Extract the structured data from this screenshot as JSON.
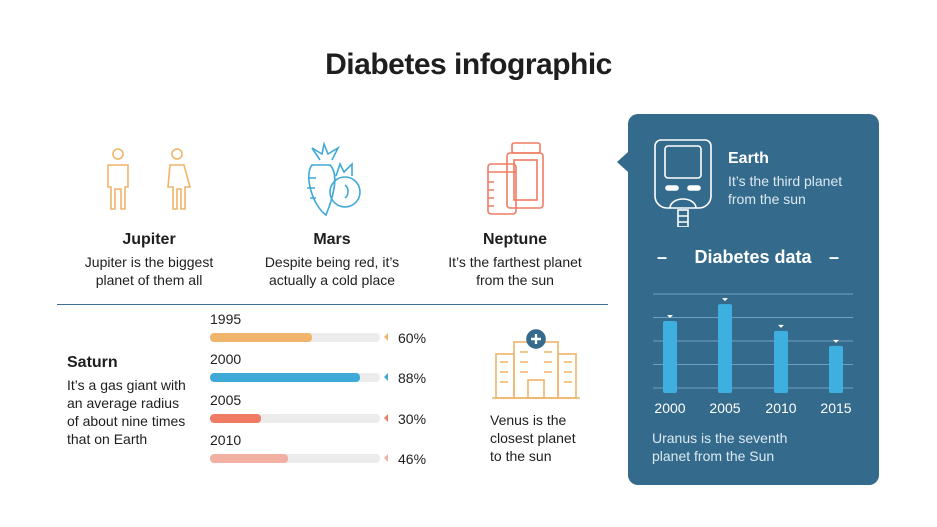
{
  "title": "Diabetes infographic",
  "features": [
    {
      "icon": "people-icon",
      "heading": "Jupiter",
      "lines": [
        "Jupiter is the biggest",
        "planet of them all"
      ]
    },
    {
      "icon": "vegetables-icon",
      "heading": "Mars",
      "lines": [
        "Despite being red, it’s",
        "actually a cold place"
      ]
    },
    {
      "icon": "medicine-bottles-icon",
      "heading": "Neptune",
      "lines": [
        "It’s the farthest planet",
        "from the sun"
      ]
    }
  ],
  "saturn": {
    "heading": "Saturn",
    "lines": [
      "It’s a gas giant with",
      "an average radius",
      "of about nine times",
      "that on Earth"
    ]
  },
  "progress": [
    {
      "year": "1995",
      "value": 60,
      "label": "60%",
      "color": "#f0b46a"
    },
    {
      "year": "2000",
      "value": 88,
      "label": "88%",
      "color": "#3fa9d8"
    },
    {
      "year": "2005",
      "value": 30,
      "label": "30%",
      "color": "#ef7b63"
    },
    {
      "year": "2010",
      "value": 46,
      "label": "46%",
      "color": "#f2b0a2"
    }
  ],
  "venus": {
    "icon": "hospital-icon",
    "lines": [
      "Venus is the",
      "closest planet",
      "to the sun"
    ]
  },
  "panel": {
    "icon": "glucose-meter-icon",
    "heading": "Earth",
    "lines": [
      "It’s the third planet",
      "from the sun"
    ],
    "chart_title": "Diabetes data",
    "footer": [
      "Uranus is the seventh",
      "planet from the Sun"
    ],
    "bg_color": "#346a8c"
  },
  "chart_data": {
    "type": "bar",
    "title": "Diabetes data",
    "categories": [
      "2000",
      "2005",
      "2010",
      "2015"
    ],
    "values": [
      2.85,
      3.57,
      2.43,
      1.79
    ],
    "ylim": [
      0,
      4
    ],
    "grid": true,
    "bar_color": "#3eb0e0"
  }
}
